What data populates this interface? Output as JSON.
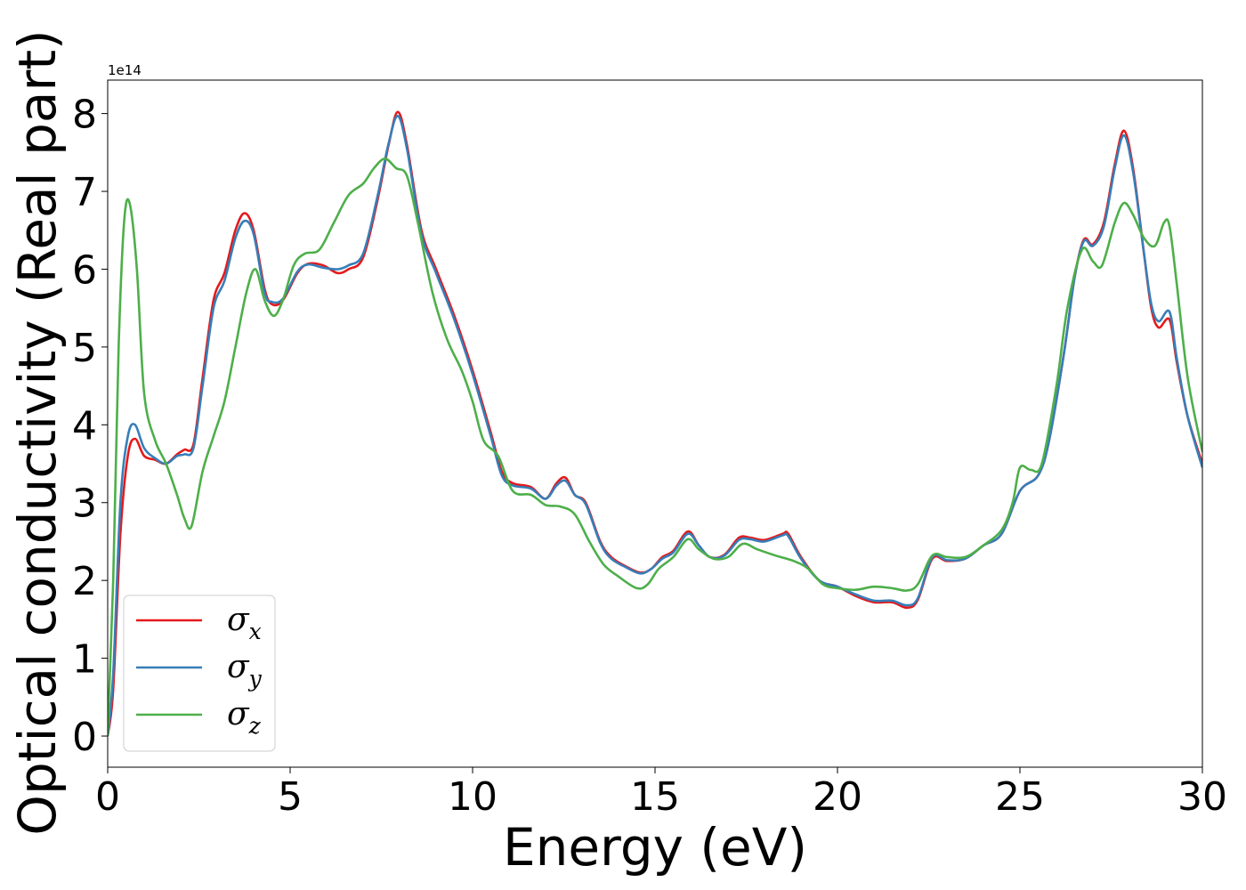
{
  "chart_data": {
    "type": "line",
    "title": "",
    "xlabel": "Energy (eV)",
    "ylabel": "Optical conductivity (Real part)",
    "y_exponent_label": "1e14",
    "xlim": [
      0,
      30
    ],
    "ylim": [
      -0.4,
      8.43
    ],
    "x_ticks": [
      0,
      5,
      10,
      15,
      20,
      25,
      30
    ],
    "y_ticks": [
      0,
      1,
      2,
      3,
      4,
      5,
      6,
      7,
      8
    ],
    "grid": false,
    "legend_position": "lower-left",
    "series": [
      {
        "name": "σx",
        "symbol": "σ",
        "subscript": "x",
        "color": "#e41a1c",
        "points": [
          [
            0,
            0
          ],
          [
            0.15,
            0.6
          ],
          [
            0.35,
            2.6
          ],
          [
            0.55,
            3.6
          ],
          [
            0.75,
            3.82
          ],
          [
            1.0,
            3.6
          ],
          [
            1.3,
            3.55
          ],
          [
            1.6,
            3.5
          ],
          [
            1.9,
            3.62
          ],
          [
            2.1,
            3.68
          ],
          [
            2.35,
            3.75
          ],
          [
            2.6,
            4.6
          ],
          [
            2.9,
            5.6
          ],
          [
            3.2,
            5.95
          ],
          [
            3.5,
            6.5
          ],
          [
            3.75,
            6.72
          ],
          [
            4.0,
            6.5
          ],
          [
            4.3,
            5.75
          ],
          [
            4.5,
            5.55
          ],
          [
            4.8,
            5.6
          ],
          [
            5.2,
            5.95
          ],
          [
            5.5,
            6.07
          ],
          [
            5.9,
            6.05
          ],
          [
            6.3,
            5.95
          ],
          [
            6.6,
            6.0
          ],
          [
            7.0,
            6.15
          ],
          [
            7.4,
            6.9
          ],
          [
            7.7,
            7.6
          ],
          [
            7.95,
            8.02
          ],
          [
            8.2,
            7.6
          ],
          [
            8.6,
            6.5
          ],
          [
            9.0,
            6.0
          ],
          [
            9.5,
            5.4
          ],
          [
            10.0,
            4.7
          ],
          [
            10.5,
            3.9
          ],
          [
            10.8,
            3.4
          ],
          [
            11.1,
            3.25
          ],
          [
            11.6,
            3.2
          ],
          [
            12.0,
            3.05
          ],
          [
            12.3,
            3.25
          ],
          [
            12.55,
            3.32
          ],
          [
            12.8,
            3.1
          ],
          [
            13.1,
            3.0
          ],
          [
            13.5,
            2.5
          ],
          [
            13.8,
            2.3
          ],
          [
            14.2,
            2.18
          ],
          [
            14.6,
            2.1
          ],
          [
            14.9,
            2.15
          ],
          [
            15.2,
            2.3
          ],
          [
            15.5,
            2.38
          ],
          [
            15.9,
            2.63
          ],
          [
            16.2,
            2.45
          ],
          [
            16.5,
            2.3
          ],
          [
            16.9,
            2.33
          ],
          [
            17.3,
            2.55
          ],
          [
            17.6,
            2.55
          ],
          [
            18.0,
            2.52
          ],
          [
            18.5,
            2.6
          ],
          [
            18.65,
            2.6
          ],
          [
            19.0,
            2.3
          ],
          [
            19.5,
            2.0
          ],
          [
            20.0,
            1.92
          ],
          [
            20.5,
            1.8
          ],
          [
            21.0,
            1.72
          ],
          [
            21.5,
            1.72
          ],
          [
            21.9,
            1.65
          ],
          [
            22.2,
            1.75
          ],
          [
            22.6,
            2.28
          ],
          [
            23.0,
            2.25
          ],
          [
            23.5,
            2.28
          ],
          [
            24.0,
            2.45
          ],
          [
            24.5,
            2.6
          ],
          [
            25.0,
            3.15
          ],
          [
            25.5,
            3.35
          ],
          [
            25.8,
            3.8
          ],
          [
            26.2,
            4.9
          ],
          [
            26.5,
            5.9
          ],
          [
            26.75,
            6.38
          ],
          [
            27.0,
            6.32
          ],
          [
            27.3,
            6.6
          ],
          [
            27.6,
            7.35
          ],
          [
            27.85,
            7.78
          ],
          [
            28.1,
            7.3
          ],
          [
            28.4,
            6.2
          ],
          [
            28.6,
            5.5
          ],
          [
            28.8,
            5.25
          ],
          [
            29.1,
            5.35
          ],
          [
            29.3,
            4.8
          ],
          [
            29.6,
            4.1
          ],
          [
            30.0,
            3.5
          ]
        ]
      },
      {
        "name": "σy",
        "symbol": "σ",
        "subscript": "y",
        "color": "#377eb8",
        "points": [
          [
            0,
            0
          ],
          [
            0.15,
            0.8
          ],
          [
            0.35,
            3.0
          ],
          [
            0.55,
            3.85
          ],
          [
            0.75,
            4.0
          ],
          [
            1.0,
            3.7
          ],
          [
            1.3,
            3.57
          ],
          [
            1.6,
            3.5
          ],
          [
            1.9,
            3.6
          ],
          [
            2.1,
            3.62
          ],
          [
            2.35,
            3.7
          ],
          [
            2.6,
            4.5
          ],
          [
            2.9,
            5.5
          ],
          [
            3.2,
            5.85
          ],
          [
            3.5,
            6.4
          ],
          [
            3.75,
            6.62
          ],
          [
            4.0,
            6.45
          ],
          [
            4.3,
            5.7
          ],
          [
            4.5,
            5.58
          ],
          [
            4.8,
            5.62
          ],
          [
            5.2,
            5.97
          ],
          [
            5.5,
            6.06
          ],
          [
            5.9,
            6.02
          ],
          [
            6.3,
            6.0
          ],
          [
            6.6,
            6.05
          ],
          [
            7.0,
            6.2
          ],
          [
            7.4,
            6.95
          ],
          [
            7.7,
            7.62
          ],
          [
            7.95,
            7.97
          ],
          [
            8.2,
            7.55
          ],
          [
            8.6,
            6.45
          ],
          [
            9.0,
            5.95
          ],
          [
            9.5,
            5.35
          ],
          [
            10.0,
            4.65
          ],
          [
            10.5,
            3.85
          ],
          [
            10.8,
            3.35
          ],
          [
            11.1,
            3.22
          ],
          [
            11.6,
            3.18
          ],
          [
            12.0,
            3.05
          ],
          [
            12.3,
            3.22
          ],
          [
            12.55,
            3.28
          ],
          [
            12.8,
            3.1
          ],
          [
            13.1,
            2.98
          ],
          [
            13.5,
            2.48
          ],
          [
            13.8,
            2.28
          ],
          [
            14.2,
            2.17
          ],
          [
            14.6,
            2.09
          ],
          [
            14.9,
            2.15
          ],
          [
            15.2,
            2.28
          ],
          [
            15.5,
            2.36
          ],
          [
            15.9,
            2.6
          ],
          [
            16.2,
            2.45
          ],
          [
            16.5,
            2.3
          ],
          [
            16.9,
            2.32
          ],
          [
            17.3,
            2.52
          ],
          [
            17.6,
            2.53
          ],
          [
            18.0,
            2.5
          ],
          [
            18.5,
            2.58
          ],
          [
            18.65,
            2.57
          ],
          [
            19.0,
            2.28
          ],
          [
            19.5,
            2.0
          ],
          [
            20.0,
            1.92
          ],
          [
            20.5,
            1.82
          ],
          [
            21.0,
            1.74
          ],
          [
            21.5,
            1.74
          ],
          [
            21.9,
            1.68
          ],
          [
            22.2,
            1.77
          ],
          [
            22.6,
            2.3
          ],
          [
            23.0,
            2.26
          ],
          [
            23.5,
            2.28
          ],
          [
            24.0,
            2.45
          ],
          [
            24.5,
            2.6
          ],
          [
            25.0,
            3.15
          ],
          [
            25.5,
            3.35
          ],
          [
            25.8,
            3.8
          ],
          [
            26.2,
            4.9
          ],
          [
            26.5,
            5.9
          ],
          [
            26.75,
            6.36
          ],
          [
            27.0,
            6.3
          ],
          [
            27.3,
            6.55
          ],
          [
            27.6,
            7.3
          ],
          [
            27.85,
            7.72
          ],
          [
            28.1,
            7.25
          ],
          [
            28.4,
            6.2
          ],
          [
            28.6,
            5.55
          ],
          [
            28.8,
            5.33
          ],
          [
            29.1,
            5.45
          ],
          [
            29.3,
            4.85
          ],
          [
            29.6,
            4.1
          ],
          [
            30.0,
            3.45
          ]
        ]
      },
      {
        "name": "σz",
        "symbol": "σ",
        "subscript": "z",
        "color": "#4daf4a",
        "points": [
          [
            0,
            0
          ],
          [
            0.15,
            2.0
          ],
          [
            0.3,
            5.0
          ],
          [
            0.45,
            6.6
          ],
          [
            0.6,
            6.85
          ],
          [
            0.8,
            6.0
          ],
          [
            1.0,
            4.4
          ],
          [
            1.3,
            3.8
          ],
          [
            1.6,
            3.5
          ],
          [
            1.9,
            3.1
          ],
          [
            2.1,
            2.8
          ],
          [
            2.3,
            2.7
          ],
          [
            2.6,
            3.4
          ],
          [
            2.9,
            3.85
          ],
          [
            3.2,
            4.3
          ],
          [
            3.5,
            5.0
          ],
          [
            3.8,
            5.7
          ],
          [
            4.05,
            6.0
          ],
          [
            4.3,
            5.6
          ],
          [
            4.55,
            5.4
          ],
          [
            4.8,
            5.6
          ],
          [
            5.1,
            6.05
          ],
          [
            5.4,
            6.2
          ],
          [
            5.8,
            6.25
          ],
          [
            6.2,
            6.6
          ],
          [
            6.6,
            6.95
          ],
          [
            7.0,
            7.1
          ],
          [
            7.3,
            7.3
          ],
          [
            7.6,
            7.42
          ],
          [
            7.9,
            7.3
          ],
          [
            8.2,
            7.2
          ],
          [
            8.5,
            6.6
          ],
          [
            8.9,
            5.7
          ],
          [
            9.3,
            5.1
          ],
          [
            9.7,
            4.7
          ],
          [
            10.0,
            4.3
          ],
          [
            10.3,
            3.8
          ],
          [
            10.7,
            3.6
          ],
          [
            11.1,
            3.15
          ],
          [
            11.6,
            3.1
          ],
          [
            12.0,
            2.97
          ],
          [
            12.4,
            2.95
          ],
          [
            12.8,
            2.85
          ],
          [
            13.2,
            2.5
          ],
          [
            13.6,
            2.2
          ],
          [
            14.0,
            2.05
          ],
          [
            14.5,
            1.9
          ],
          [
            14.8,
            1.95
          ],
          [
            15.1,
            2.15
          ],
          [
            15.5,
            2.3
          ],
          [
            15.9,
            2.53
          ],
          [
            16.2,
            2.4
          ],
          [
            16.6,
            2.28
          ],
          [
            17.0,
            2.3
          ],
          [
            17.4,
            2.47
          ],
          [
            17.8,
            2.4
          ],
          [
            18.3,
            2.32
          ],
          [
            18.8,
            2.25
          ],
          [
            19.2,
            2.15
          ],
          [
            19.6,
            1.95
          ],
          [
            20.0,
            1.9
          ],
          [
            20.5,
            1.88
          ],
          [
            21.0,
            1.92
          ],
          [
            21.5,
            1.9
          ],
          [
            21.9,
            1.87
          ],
          [
            22.2,
            1.95
          ],
          [
            22.6,
            2.32
          ],
          [
            23.0,
            2.3
          ],
          [
            23.5,
            2.3
          ],
          [
            24.0,
            2.45
          ],
          [
            24.5,
            2.65
          ],
          [
            24.8,
            3.0
          ],
          [
            25.0,
            3.45
          ],
          [
            25.3,
            3.42
          ],
          [
            25.6,
            3.5
          ],
          [
            26.0,
            4.5
          ],
          [
            26.3,
            5.5
          ],
          [
            26.7,
            6.25
          ],
          [
            27.0,
            6.1
          ],
          [
            27.25,
            6.05
          ],
          [
            27.6,
            6.6
          ],
          [
            27.85,
            6.85
          ],
          [
            28.1,
            6.7
          ],
          [
            28.4,
            6.4
          ],
          [
            28.7,
            6.3
          ],
          [
            28.95,
            6.6
          ],
          [
            29.1,
            6.55
          ],
          [
            29.3,
            5.8
          ],
          [
            29.6,
            4.6
          ],
          [
            30.0,
            3.65
          ]
        ]
      }
    ]
  }
}
